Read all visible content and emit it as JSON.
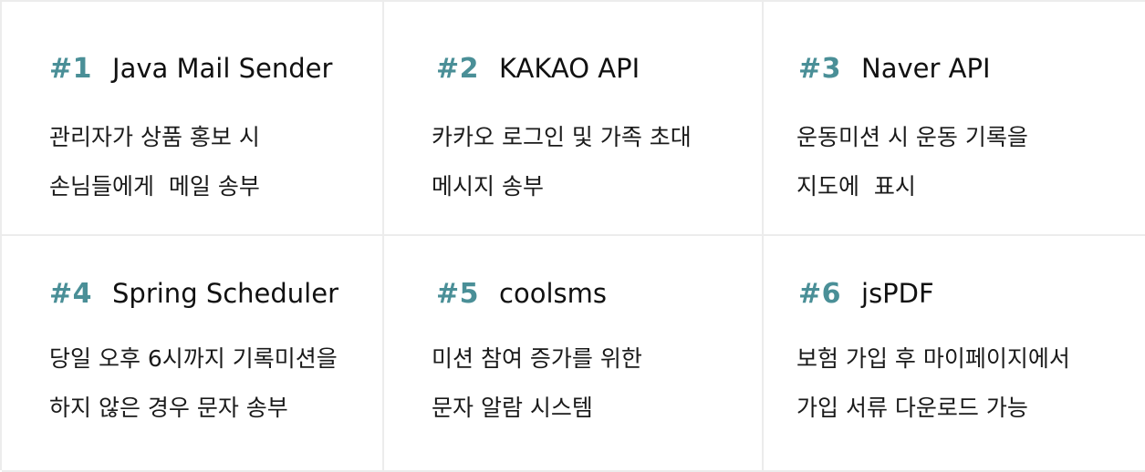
{
  "cards": [
    {
      "number": "#1",
      "title": "Java Mail Sender",
      "line1": "관리자가 상품 홍보 시",
      "line2": "손님들에게  메일 송부"
    },
    {
      "number": "#2",
      "title": "KAKAO API",
      "line1": "카카오 로그인 및 가족 초대",
      "line2": "메시지 송부"
    },
    {
      "number": "#3",
      "title": "Naver API",
      "line1": "운동미션 시 운동 기록을",
      "line2": "지도에  표시"
    },
    {
      "number": "#4",
      "title": "Spring Scheduler",
      "line1": "당일 오후 6시까지 기록미션을",
      "line2": "하지 않은 경우 문자 송부"
    },
    {
      "number": "#5",
      "title": "coolsms",
      "line1": "미션 참여 증가를 위한",
      "line2": "문자 알람 시스템"
    },
    {
      "number": "#6",
      "title": "jsPDF",
      "line1": "보험 가입 후 마이페이지에서",
      "line2": "가입 서류 다운로드 가능"
    }
  ],
  "colors": {
    "accent": "#4a8f97",
    "border": "#ececec"
  }
}
